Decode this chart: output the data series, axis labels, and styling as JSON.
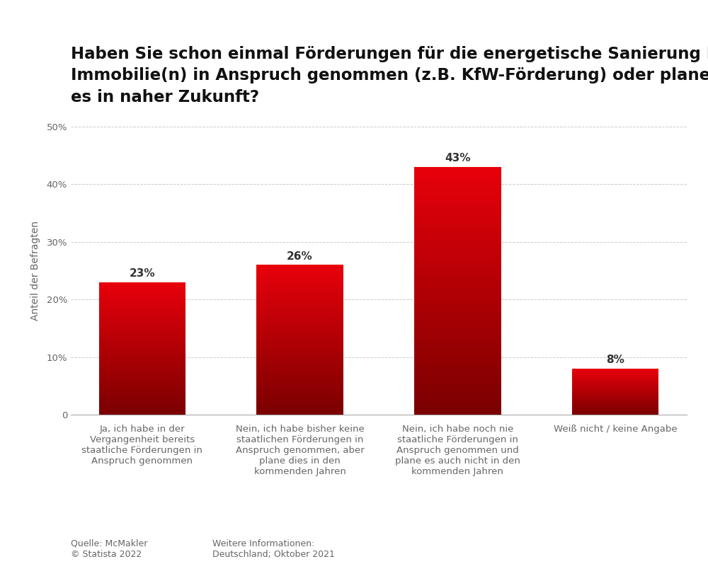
{
  "title_line1": "Haben Sie schon einmal Förderungen für die energetische Sanierung Ihrer",
  "title_line2": "Immobilie(n) in Anspruch genommen (z.B. KfW-Förderung) oder planen Sie",
  "title_line3": "es in naher Zukunft?",
  "categories": [
    "Ja, ich habe in der\nVergangenheit bereits\nstaatliche Förderungen in\nAnspruch genommen",
    "Nein, ich habe bisher keine\nstaatlichen Förderungen in\nAnspruch genommen, aber\nplane dies in den\nkommenden Jahren",
    "Nein, ich habe noch nie\nstaatliche Förderungen in\nAnspruch genommen und\nplane es auch nicht in den\nkommenden Jahren",
    "Weiß nicht / keine Angabe"
  ],
  "values": [
    23,
    26,
    43,
    8
  ],
  "labels": [
    "23%",
    "26%",
    "43%",
    "8%"
  ],
  "bar_color_top": "#e8000a",
  "bar_color_bottom": "#7a0000",
  "ylabel": "Anteil der Befragten",
  "ylim": [
    0,
    50
  ],
  "yticks": [
    0,
    10,
    20,
    30,
    40,
    50
  ],
  "ytick_labels": [
    "0",
    "10%",
    "20%",
    "30%",
    "40%",
    "50%"
  ],
  "grid_color": "#cccccc",
  "background_color": "#ffffff",
  "title_fontsize": 16.5,
  "label_fontsize": 11,
  "ylabel_fontsize": 10,
  "tick_fontsize": 9.5,
  "footer_left": "Quelle: McMakler\n© Statista 2022",
  "footer_right": "Weitere Informationen:\nDeutschland; Oktober 2021",
  "footer_fontsize": 9
}
